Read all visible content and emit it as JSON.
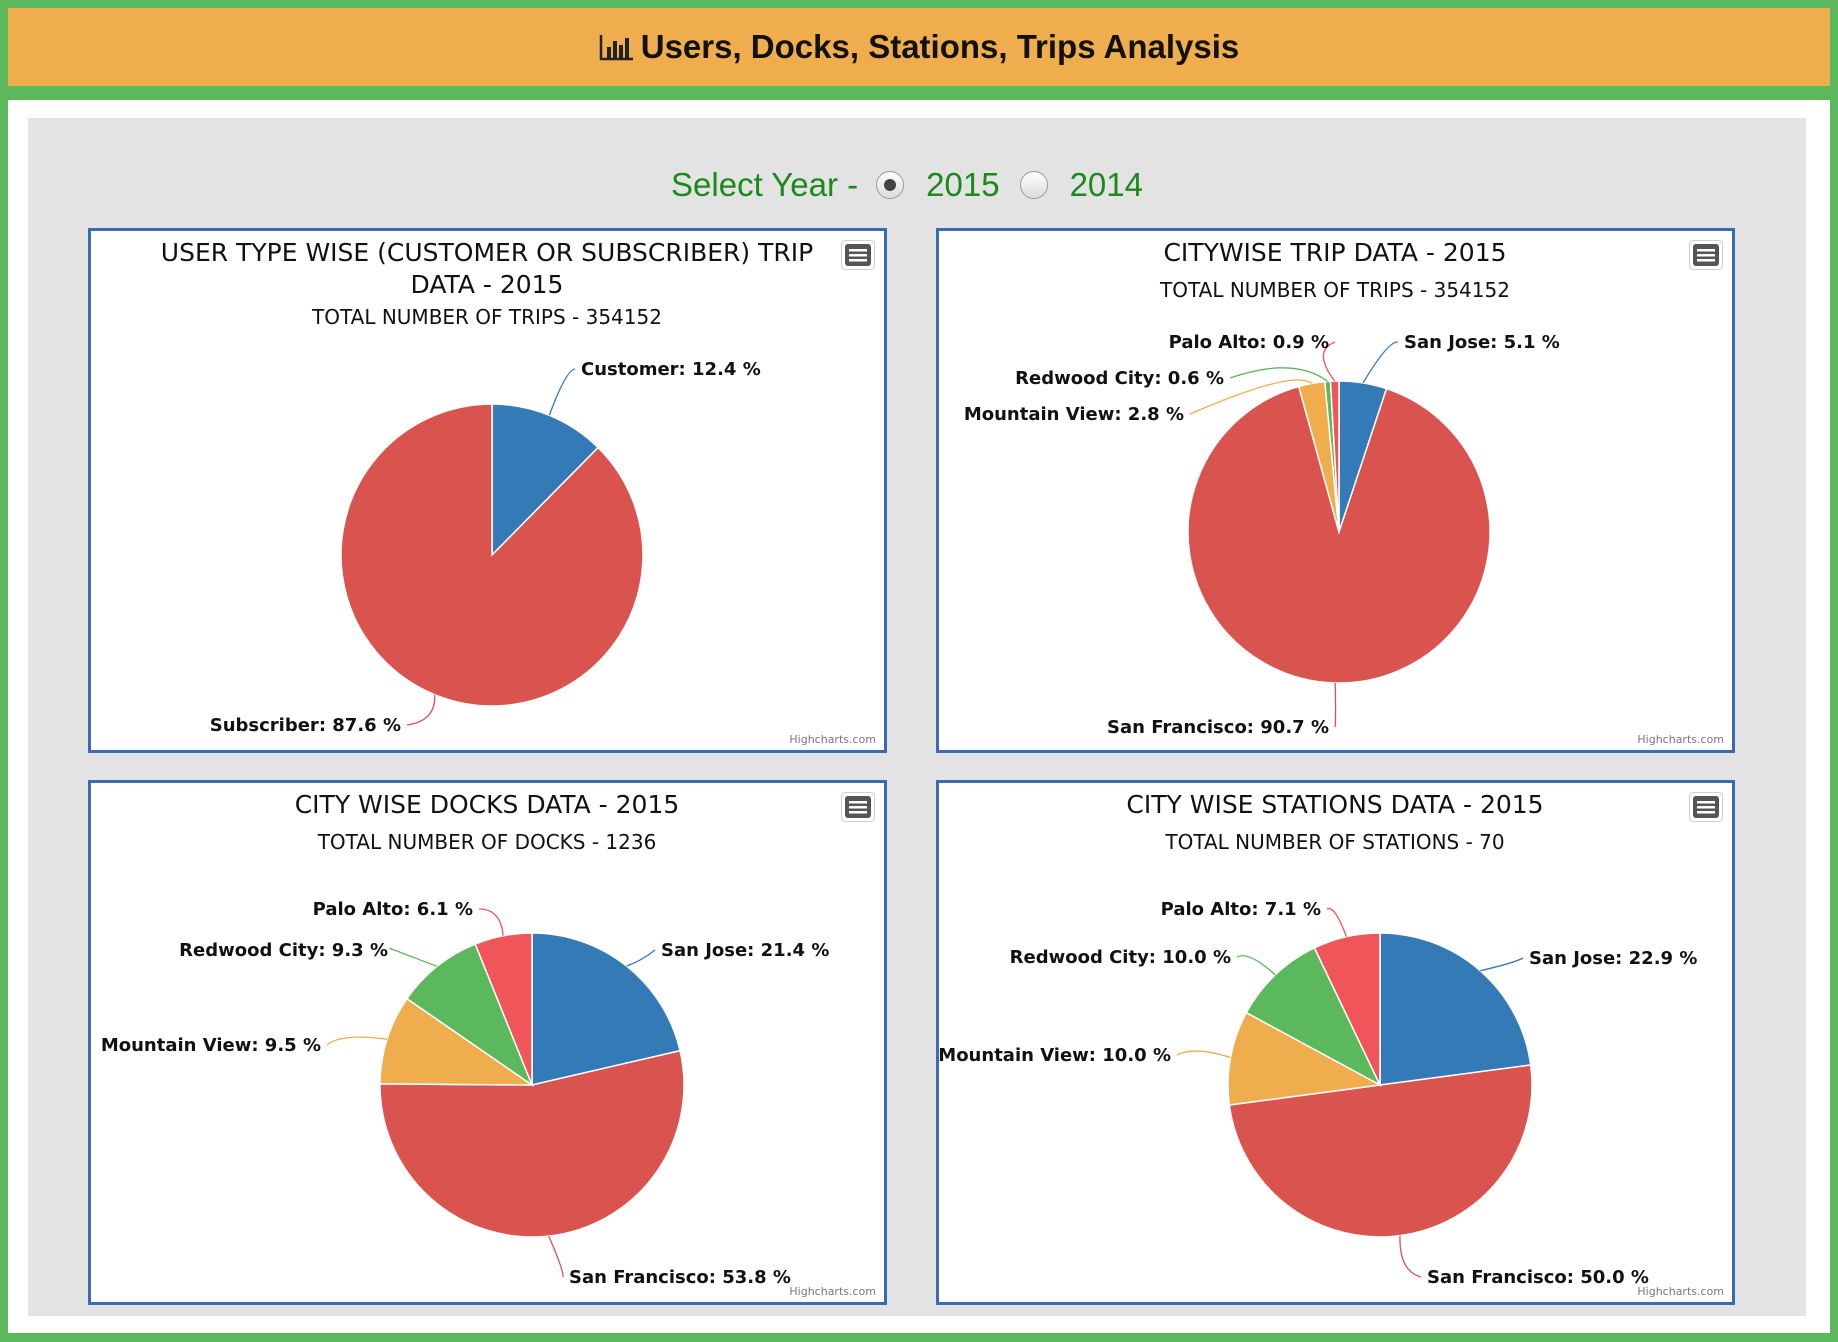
{
  "header": {
    "title": "Users, Docks, Stations, Trips Analysis",
    "icon": "bar-chart-icon"
  },
  "year_select": {
    "label": "Select Year -",
    "options": [
      {
        "label": "2015",
        "checked": true
      },
      {
        "label": "2014",
        "checked": false
      }
    ]
  },
  "colors": {
    "blue": "#337ab7",
    "red": "#d9534f",
    "green": "#5cb85c",
    "orange": "#f0ad4e",
    "salmon": "#f0555a"
  },
  "chart_data": [
    {
      "type": "pie",
      "title": "USER TYPE WISE (CUSTOMER OR SUBSCRIBER) TRIP DATA - 2015",
      "subtitle": "TOTAL NUMBER OF TRIPS - 354152",
      "credits": "Highcharts.com",
      "slices": [
        {
          "label": "Customer",
          "value": 12.4,
          "color": "#337ab7"
        },
        {
          "label": "Subscriber",
          "value": 87.6,
          "color": "#d9534f"
        }
      ]
    },
    {
      "type": "pie",
      "title": "CITYWISE TRIP DATA - 2015",
      "subtitle": "TOTAL NUMBER OF TRIPS - 354152",
      "credits": "Highcharts.com",
      "slices": [
        {
          "label": "San Jose",
          "value": 5.1,
          "color": "#337ab7"
        },
        {
          "label": "San Francisco",
          "value": 90.7,
          "color": "#d9534f"
        },
        {
          "label": "Mountain View",
          "value": 2.8,
          "color": "#f0ad4e"
        },
        {
          "label": "Redwood City",
          "value": 0.6,
          "color": "#5cb85c"
        },
        {
          "label": "Palo Alto",
          "value": 0.9,
          "color": "#f0555a"
        }
      ]
    },
    {
      "type": "pie",
      "title": "CITY WISE DOCKS DATA - 2015",
      "subtitle": "TOTAL NUMBER OF DOCKS - 1236",
      "credits": "Highcharts.com",
      "slices": [
        {
          "label": "San Jose",
          "value": 21.4,
          "color": "#337ab7"
        },
        {
          "label": "San Francisco",
          "value": 53.8,
          "color": "#d9534f"
        },
        {
          "label": "Mountain View",
          "value": 9.5,
          "color": "#f0ad4e"
        },
        {
          "label": "Redwood City",
          "value": 9.3,
          "color": "#5cb85c"
        },
        {
          "label": "Palo Alto",
          "value": 6.1,
          "color": "#f0555a"
        }
      ]
    },
    {
      "type": "pie",
      "title": "CITY WISE STATIONS DATA - 2015",
      "subtitle": "TOTAL NUMBER OF STATIONS - 70",
      "credits": "Highcharts.com",
      "slices": [
        {
          "label": "San Jose",
          "value": 22.9,
          "color": "#337ab7"
        },
        {
          "label": "San Francisco",
          "value": 50.0,
          "color": "#d9534f"
        },
        {
          "label": "Mountain View",
          "value": 10.0,
          "color": "#f0ad4e"
        },
        {
          "label": "Redwood City",
          "value": 10.0,
          "color": "#5cb85c"
        },
        {
          "label": "Palo Alto",
          "value": 7.1,
          "color": "#f0555a"
        }
      ]
    }
  ]
}
